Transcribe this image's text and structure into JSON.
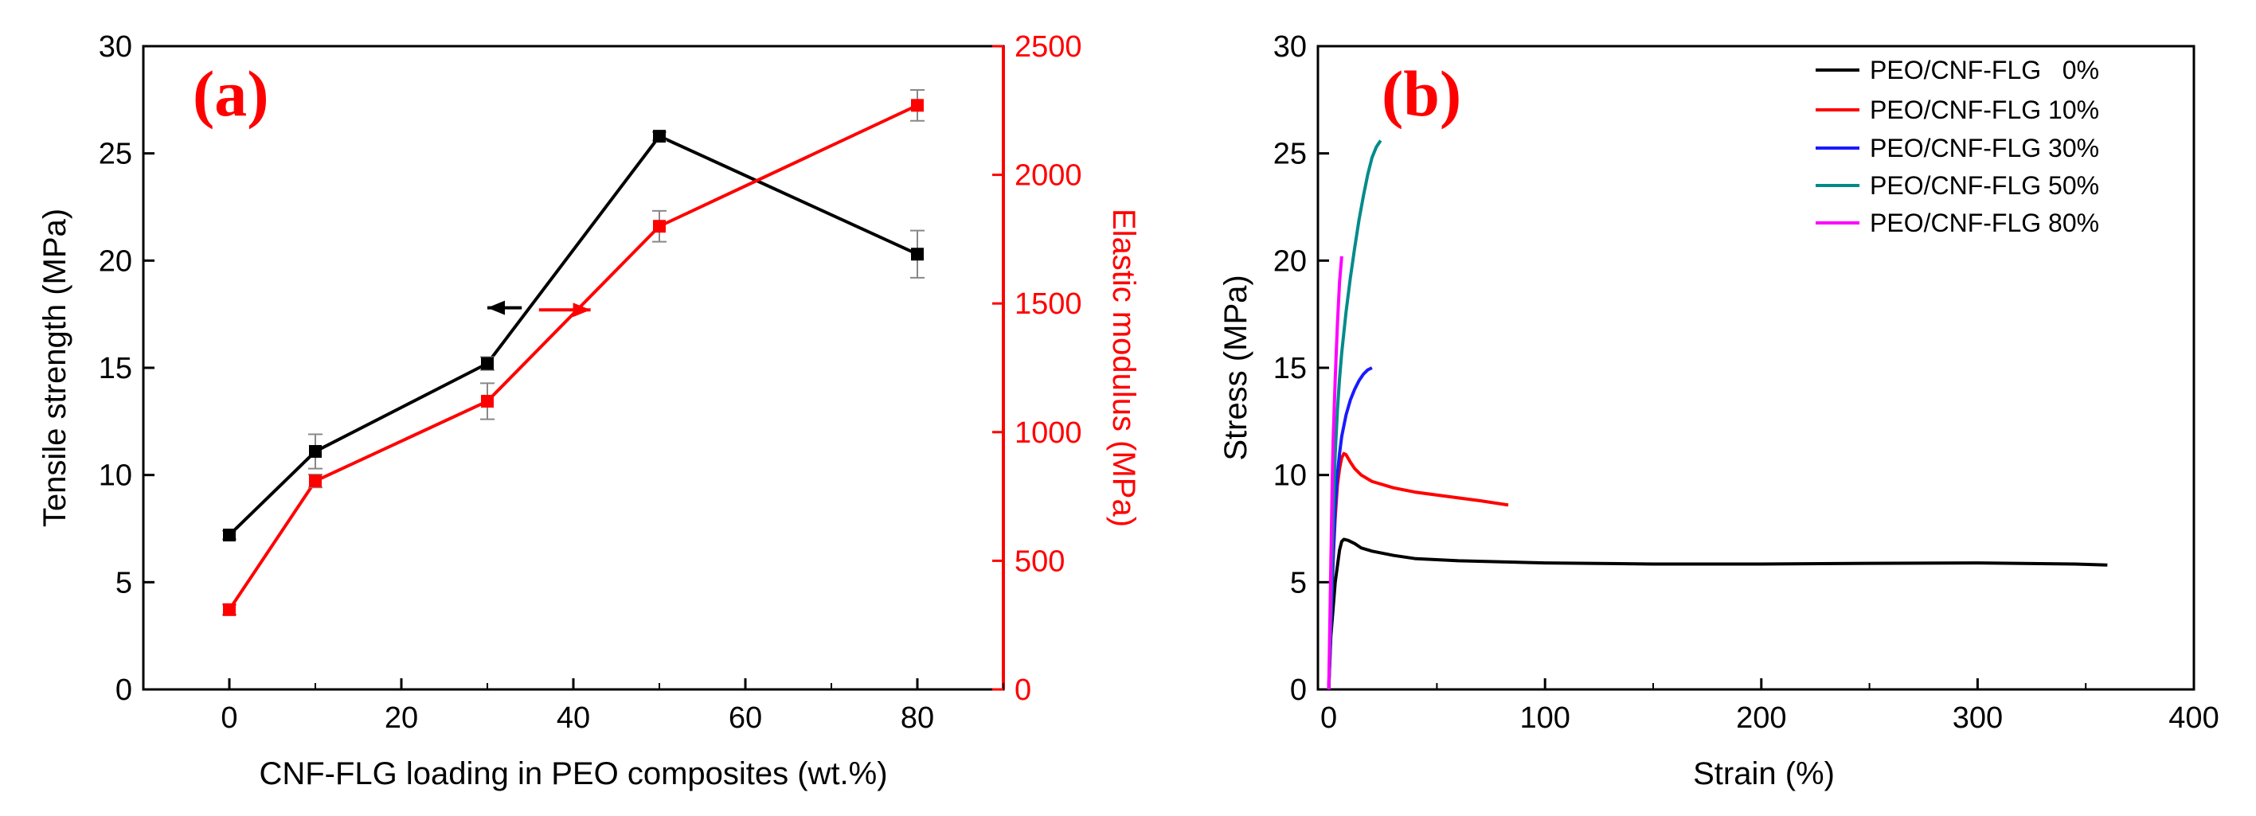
{
  "colors": {
    "black": "#000000",
    "red": "#ff0000",
    "panel_label": "#ff0000",
    "series_0": "#000000",
    "series_10": "#ff0000",
    "series_30": "#1a1aff",
    "series_50": "#008b8b",
    "series_80": "#ff00ff",
    "errorbar": "#888888"
  },
  "chart_data": [
    {
      "type": "line",
      "panel_label": "(a)",
      "xlabel": "CNF-FLG loading in PEO composites (wt.%)",
      "ylabel": "Tensile strength (MPa)",
      "y2label": "Elastic modulus (MPa)",
      "xlim": [
        -10,
        90
      ],
      "ylim": [
        0,
        30
      ],
      "y2lim": [
        0,
        2500
      ],
      "xticks": [
        0,
        20,
        40,
        60,
        80
      ],
      "yticks": [
        0,
        5,
        10,
        15,
        20,
        25,
        30
      ],
      "y2ticks": [
        0,
        500,
        1000,
        1500,
        2000,
        2500
      ],
      "series": [
        {
          "name": "Tensile strength",
          "axis": "left",
          "color": "#000000",
          "x": [
            0,
            10,
            30,
            50,
            80
          ],
          "values": [
            7.2,
            11.1,
            15.2,
            25.8,
            20.3
          ],
          "errors": [
            0.2,
            0.8,
            0.3,
            0.2,
            1.1
          ]
        },
        {
          "name": "Elastic modulus",
          "axis": "right",
          "color": "#ff0000",
          "x": [
            0,
            10,
            30,
            50,
            80
          ],
          "values": [
            310,
            810,
            1120,
            1800,
            2270
          ],
          "errors": [
            20,
            25,
            70,
            60,
            60
          ]
        }
      ],
      "arrows": [
        {
          "points_to": "left",
          "at_x": [
            30,
            34
          ],
          "at_y": 17.8,
          "color": "#000000"
        },
        {
          "points_to": "right",
          "at_x": [
            36,
            42
          ],
          "at_y": 17.7,
          "color": "#ff0000"
        }
      ]
    },
    {
      "type": "line",
      "panel_label": "(b)",
      "xlabel": "Strain (%)",
      "ylabel": "Stress (MPa)",
      "xlim": [
        -5,
        400
      ],
      "ylim": [
        0,
        30
      ],
      "xticks": [
        0,
        100,
        200,
        300,
        400
      ],
      "yticks": [
        0,
        5,
        10,
        15,
        20,
        25,
        30
      ],
      "legend_position": "top-right",
      "series": [
        {
          "name": "PEO/CNF-FLG   0%",
          "color": "#000000",
          "x": [
            0,
            1,
            3,
            5,
            6,
            7,
            9,
            12,
            15,
            20,
            30,
            40,
            60,
            80,
            100,
            150,
            200,
            250,
            300,
            345,
            360
          ],
          "y": [
            0,
            2.5,
            5.0,
            6.5,
            6.9,
            7.0,
            6.95,
            6.8,
            6.6,
            6.45,
            6.25,
            6.1,
            6.0,
            5.95,
            5.9,
            5.85,
            5.85,
            5.88,
            5.9,
            5.85,
            5.8
          ]
        },
        {
          "name": "PEO/CNF-FLG 10%",
          "color": "#ff0000",
          "x": [
            0,
            1,
            2,
            3,
            4,
            5,
            6,
            7,
            8,
            10,
            12,
            15,
            20,
            30,
            40,
            55,
            70,
            83
          ],
          "y": [
            0,
            3,
            6,
            8,
            9.5,
            10.3,
            10.8,
            11.0,
            10.95,
            10.6,
            10.3,
            10.0,
            9.7,
            9.4,
            9.2,
            9.0,
            8.8,
            8.6
          ]
        },
        {
          "name": "PEO/CNF-FLG 30%",
          "color": "#1a1aff",
          "x": [
            0,
            1,
            2,
            3,
            4,
            5,
            6,
            8,
            10,
            12,
            14,
            16,
            18,
            20
          ],
          "y": [
            0,
            3,
            6,
            8.5,
            10,
            11,
            11.8,
            12.8,
            13.5,
            14.0,
            14.4,
            14.7,
            14.9,
            15.0
          ]
        },
        {
          "name": "PEO/CNF-FLG 50%",
          "color": "#008b8b",
          "x": [
            0,
            1,
            2,
            3,
            4,
            5,
            6,
            8,
            10,
            12,
            14,
            16,
            18,
            20,
            22,
            24
          ],
          "y": [
            0,
            4,
            8,
            11,
            13,
            14.5,
            15.7,
            17.6,
            19.2,
            20.6,
            21.9,
            23.0,
            24.0,
            24.8,
            25.3,
            25.6
          ]
        },
        {
          "name": "PEO/CNF-FLG 80%",
          "color": "#ff00ff",
          "x": [
            0,
            0.5,
            1,
            1.5,
            2,
            3,
            4,
            5,
            6
          ],
          "y": [
            0,
            3,
            6,
            9,
            11.5,
            14.5,
            17,
            19,
            20.2
          ]
        }
      ]
    }
  ]
}
